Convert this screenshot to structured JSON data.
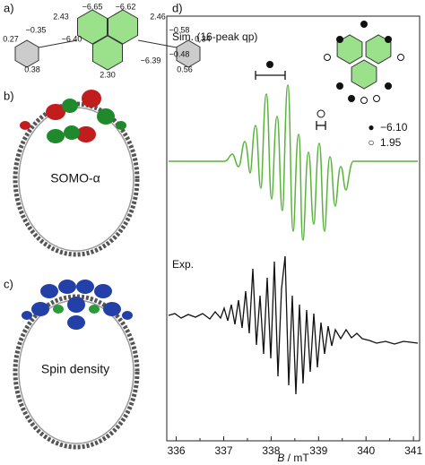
{
  "panel_a": {
    "label": "a)",
    "numbers": [
      "−6.65",
      "−6.62",
      "2.43",
      "2.46",
      "−0.35",
      "0.27",
      "−0.58",
      "0.34",
      "−6.40",
      "−6.39",
      "−0.48",
      "0.38",
      "2.30",
      "0.56"
    ]
  },
  "panel_b": {
    "label": "b)",
    "caption": "SOMO-α"
  },
  "panel_c": {
    "label": "c)",
    "caption": "Spin density"
  },
  "chart_data": {
    "type": "line",
    "label": "d)",
    "x_label_symbol": "B",
    "x_label_unit": " / mT",
    "xlim": [
      335.8,
      341.13
    ],
    "xticks": [
      336,
      337,
      338,
      339,
      340,
      341
    ],
    "sim_label": "Sim. (16-peak qp)",
    "exp_label": "Exp.",
    "couplings": [
      {
        "marker": "●",
        "value": "−6.10"
      },
      {
        "marker": "○",
        "value": "1.95"
      }
    ],
    "sim_color": "#58b43c",
    "exp_color": "#111111"
  }
}
